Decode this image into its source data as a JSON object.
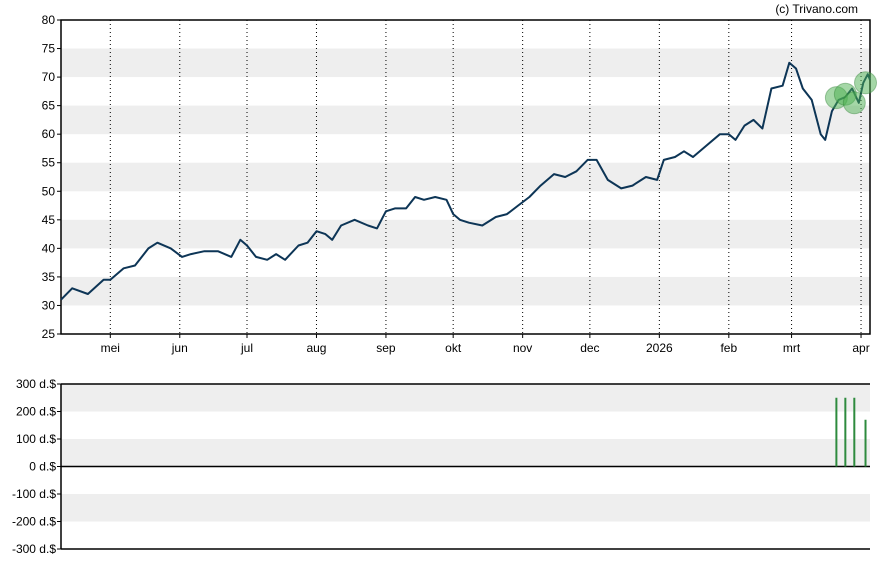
{
  "copyright": "(c) Trivano.com",
  "chart_data": [
    {
      "type": "line",
      "x_type": "date",
      "xlim": [
        "2025-04-09",
        "2026-04-05"
      ],
      "ylim": [
        25,
        80
      ],
      "yticks": [
        25,
        30,
        35,
        40,
        45,
        50,
        55,
        60,
        65,
        70,
        75,
        80
      ],
      "grid": "alternating horizontal bands, dotted monthly vertical lines",
      "line_color": "#0d3556",
      "marker_color": "#4caf50",
      "xticks": [
        {
          "date": "2025-05-01",
          "label": "mei"
        },
        {
          "date": "2025-06-01",
          "label": "jun"
        },
        {
          "date": "2025-07-01",
          "label": "jul"
        },
        {
          "date": "2025-08-01",
          "label": "aug"
        },
        {
          "date": "2025-09-01",
          "label": "sep"
        },
        {
          "date": "2025-10-01",
          "label": "okt"
        },
        {
          "date": "2025-11-01",
          "label": "nov"
        },
        {
          "date": "2025-12-01",
          "label": "dec"
        },
        {
          "date": "2026-01-01",
          "label": "2026"
        },
        {
          "date": "2026-02-01",
          "label": "feb"
        },
        {
          "date": "2026-03-01",
          "label": "mrt"
        },
        {
          "date": "2026-04-01",
          "label": "apr"
        }
      ],
      "series": [
        {
          "points": [
            [
              "2025-04-09",
              31
            ],
            [
              "2025-04-14",
              33
            ],
            [
              "2025-04-21",
              32
            ],
            [
              "2025-04-28",
              34.5
            ],
            [
              "2025-05-01",
              34.5
            ],
            [
              "2025-05-07",
              36.5
            ],
            [
              "2025-05-12",
              37
            ],
            [
              "2025-05-18",
              40
            ],
            [
              "2025-05-22",
              41
            ],
            [
              "2025-05-28",
              40
            ],
            [
              "2025-06-02",
              38.5
            ],
            [
              "2025-06-06",
              39
            ],
            [
              "2025-06-12",
              39.5
            ],
            [
              "2025-06-18",
              39.5
            ],
            [
              "2025-06-24",
              38.5
            ],
            [
              "2025-06-28",
              41.5
            ],
            [
              "2025-07-01",
              40.5
            ],
            [
              "2025-07-05",
              38.5
            ],
            [
              "2025-07-10",
              38
            ],
            [
              "2025-07-14",
              39
            ],
            [
              "2025-07-18",
              38
            ],
            [
              "2025-07-24",
              40.5
            ],
            [
              "2025-07-28",
              41
            ],
            [
              "2025-08-01",
              43
            ],
            [
              "2025-08-05",
              42.5
            ],
            [
              "2025-08-08",
              41.5
            ],
            [
              "2025-08-12",
              44
            ],
            [
              "2025-08-18",
              45
            ],
            [
              "2025-08-24",
              44
            ],
            [
              "2025-08-28",
              43.5
            ],
            [
              "2025-09-01",
              46.5
            ],
            [
              "2025-09-05",
              47
            ],
            [
              "2025-09-10",
              47
            ],
            [
              "2025-09-14",
              49
            ],
            [
              "2025-09-18",
              48.5
            ],
            [
              "2025-09-23",
              49
            ],
            [
              "2025-09-28",
              48.5
            ],
            [
              "2025-10-01",
              46
            ],
            [
              "2025-10-04",
              45
            ],
            [
              "2025-10-08",
              44.5
            ],
            [
              "2025-10-14",
              44
            ],
            [
              "2025-10-20",
              45.5
            ],
            [
              "2025-10-25",
              46
            ],
            [
              "2025-10-30",
              47.5
            ],
            [
              "2025-11-04",
              49
            ],
            [
              "2025-11-09",
              51
            ],
            [
              "2025-11-15",
              53
            ],
            [
              "2025-11-20",
              52.5
            ],
            [
              "2025-11-25",
              53.5
            ],
            [
              "2025-11-30",
              55.5
            ],
            [
              "2025-12-04",
              55.5
            ],
            [
              "2025-12-09",
              52
            ],
            [
              "2025-12-15",
              50.5
            ],
            [
              "2025-12-20",
              51
            ],
            [
              "2025-12-26",
              52.5
            ],
            [
              "2025-12-31",
              52
            ],
            [
              "2026-01-03",
              55.5
            ],
            [
              "2026-01-08",
              56
            ],
            [
              "2026-01-12",
              57
            ],
            [
              "2026-01-16",
              56
            ],
            [
              "2026-01-22",
              58
            ],
            [
              "2026-01-28",
              60
            ],
            [
              "2026-02-01",
              60
            ],
            [
              "2026-02-04",
              59
            ],
            [
              "2026-02-08",
              61.5
            ],
            [
              "2026-02-12",
              62.5
            ],
            [
              "2026-02-16",
              61
            ],
            [
              "2026-02-20",
              68
            ],
            [
              "2026-02-25",
              68.5
            ],
            [
              "2026-02-28",
              72.5
            ],
            [
              "2026-03-03",
              71.5
            ],
            [
              "2026-03-06",
              68
            ],
            [
              "2026-03-10",
              66
            ],
            [
              "2026-03-14",
              60
            ],
            [
              "2026-03-16",
              59
            ],
            [
              "2026-03-19",
              64
            ],
            [
              "2026-03-22",
              66
            ],
            [
              "2026-03-25",
              66.5
            ],
            [
              "2026-03-28",
              68
            ],
            [
              "2026-03-31",
              65.5
            ],
            [
              "2026-04-02",
              69
            ],
            [
              "2026-04-04",
              70.5
            ],
            [
              "2026-04-05",
              69.5
            ]
          ]
        }
      ],
      "markers": [
        [
          "2026-03-21",
          66.4
        ],
        [
          "2026-03-25",
          67
        ],
        [
          "2026-03-29",
          65.5
        ],
        [
          "2026-04-03",
          69
        ]
      ]
    },
    {
      "type": "bar",
      "x_type": "date",
      "xlim": [
        "2025-04-09",
        "2026-04-05"
      ],
      "ylim": [
        -300,
        300
      ],
      "yticks": [
        {
          "v": 300,
          "label": "300 d.$"
        },
        {
          "v": 200,
          "label": "200 d.$"
        },
        {
          "v": 100,
          "label": "100 d.$"
        },
        {
          "v": 0,
          "label": "0 d.$"
        },
        {
          "v": -100,
          "label": "-100 d.$"
        },
        {
          "v": -200,
          "label": "-200 d.$"
        },
        {
          "v": -300,
          "label": "-300 d.$"
        }
      ],
      "bar_color": "#2e8b3e",
      "bars": [
        [
          "2026-03-21",
          250
        ],
        [
          "2026-03-25",
          250
        ],
        [
          "2026-03-29",
          250
        ],
        [
          "2026-04-03",
          170
        ]
      ]
    }
  ]
}
